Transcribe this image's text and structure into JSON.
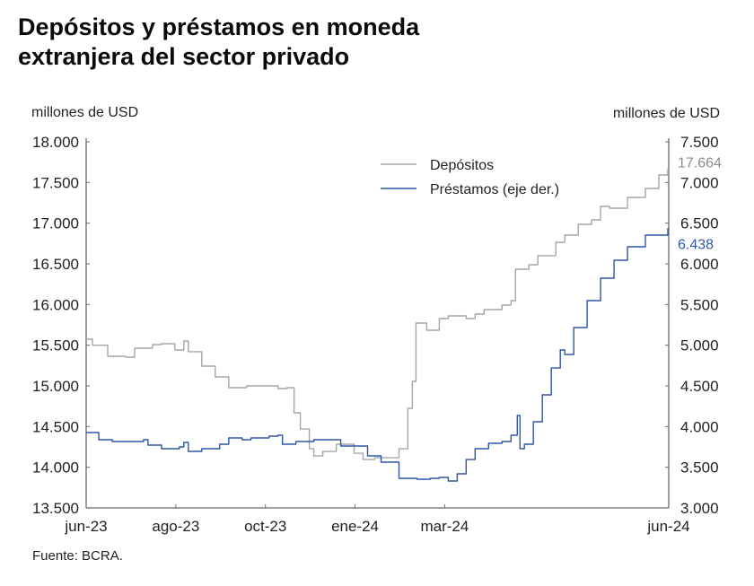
{
  "chart_data": {
    "type": "line",
    "title": "Depósitos y préstamos en moneda extranjera del sector privado",
    "ylabel_left": "millones de USD",
    "ylabel_right": "millones de USD",
    "source": "Fuente: BCRA.",
    "x_axis": {
      "unit": "period index (jun-23 = 0, jun-24 = 6.5)",
      "range": [
        0,
        6.5
      ],
      "ticks": [
        {
          "value": 0,
          "label": "jun-23"
        },
        {
          "value": 1,
          "label": "ago-23"
        },
        {
          "value": 2,
          "label": "oct-23"
        },
        {
          "value": 3,
          "label": "ene-24"
        },
        {
          "value": 4,
          "label": "mar-24"
        },
        {
          "value": 6.5,
          "label": "jun-24"
        }
      ]
    },
    "y_left": {
      "range": [
        13500,
        18000
      ],
      "ticks": [
        13500,
        14000,
        14500,
        15000,
        15500,
        16000,
        16500,
        17000,
        17500,
        18000
      ],
      "tick_labels": [
        "13.500",
        "14.000",
        "14.500",
        "15.000",
        "15.500",
        "16.000",
        "16.500",
        "17.000",
        "17.500",
        "18.000"
      ]
    },
    "y_right": {
      "range": [
        3000,
        7500
      ],
      "ticks": [
        3000,
        3500,
        4000,
        4500,
        5000,
        5500,
        6000,
        6500,
        7000,
        7500
      ],
      "tick_labels": [
        "3.000",
        "3.500",
        "4.000",
        "4.500",
        "5.000",
        "5.500",
        "6.000",
        "6.500",
        "7.000",
        "7.500"
      ]
    },
    "legend": {
      "position": "top-center"
    },
    "grid": false,
    "series": [
      {
        "name": "Depósitos",
        "axis": "left",
        "color": "#a6a6a6",
        "end_label": "17.664",
        "x": [
          0,
          0.07,
          0.24,
          0.44,
          0.54,
          0.74,
          0.84,
          0.99,
          1.09,
          1.14,
          1.29,
          1.44,
          1.59,
          1.79,
          1.94,
          2.14,
          2.24,
          2.32,
          2.39,
          2.49,
          2.54,
          2.64,
          2.79,
          2.99,
          3.09,
          3.22,
          3.44,
          3.49,
          3.59,
          3.64,
          3.68,
          3.74,
          3.8,
          3.94,
          4.04,
          4.24,
          4.34,
          4.44,
          4.64,
          4.74,
          4.79,
          4.94,
          5.04,
          5.24,
          5.34,
          5.49,
          5.64,
          5.74,
          5.84,
          6.04,
          6.24,
          6.39,
          6.49
        ],
        "values": [
          15574,
          15500,
          15364,
          15353,
          15463,
          15507,
          15518,
          15441,
          15551,
          15420,
          15243,
          15110,
          14978,
          15000,
          15000,
          14967,
          14978,
          14669,
          14470,
          14227,
          14139,
          14194,
          14283,
          14172,
          14095,
          14117,
          14117,
          14227,
          14724,
          15055,
          15772,
          15772,
          15684,
          15827,
          15860,
          15827,
          15882,
          15937,
          15993,
          16048,
          16434,
          16489,
          16600,
          16765,
          16853,
          16985,
          17040,
          17206,
          17184,
          17316,
          17426,
          17592,
          17664
        ]
      },
      {
        "name": "Préstamos (eje der.)",
        "axis": "right",
        "color": "#2e56a6",
        "end_label": "6.438",
        "x": [
          0,
          0.14,
          0.29,
          0.54,
          0.64,
          0.69,
          0.84,
          1.04,
          1.09,
          1.14,
          1.29,
          1.49,
          1.59,
          1.74,
          1.84,
          2.04,
          2.14,
          2.19,
          2.34,
          2.54,
          2.84,
          3.14,
          3.29,
          3.46,
          3.49,
          3.69,
          3.84,
          3.94,
          4.04,
          4.14,
          4.24,
          4.34,
          4.49,
          4.64,
          4.74,
          4.81,
          4.84,
          4.89,
          4.99,
          5.09,
          5.19,
          5.29,
          5.34,
          5.44,
          5.59,
          5.74,
          5.89,
          6.04,
          6.24,
          6.49
        ],
        "values": [
          3926,
          3838,
          3816,
          3816,
          3838,
          3772,
          3728,
          3750,
          3805,
          3695,
          3728,
          3783,
          3860,
          3838,
          3860,
          3882,
          3893,
          3783,
          3816,
          3838,
          3761,
          3640,
          3562,
          3562,
          3364,
          3353,
          3364,
          3375,
          3331,
          3419,
          3595,
          3728,
          3794,
          3816,
          3893,
          4136,
          3728,
          3783,
          4059,
          4390,
          4720,
          4941,
          4886,
          5217,
          5548,
          5824,
          6044,
          6210,
          6353,
          6438
        ]
      }
    ]
  }
}
